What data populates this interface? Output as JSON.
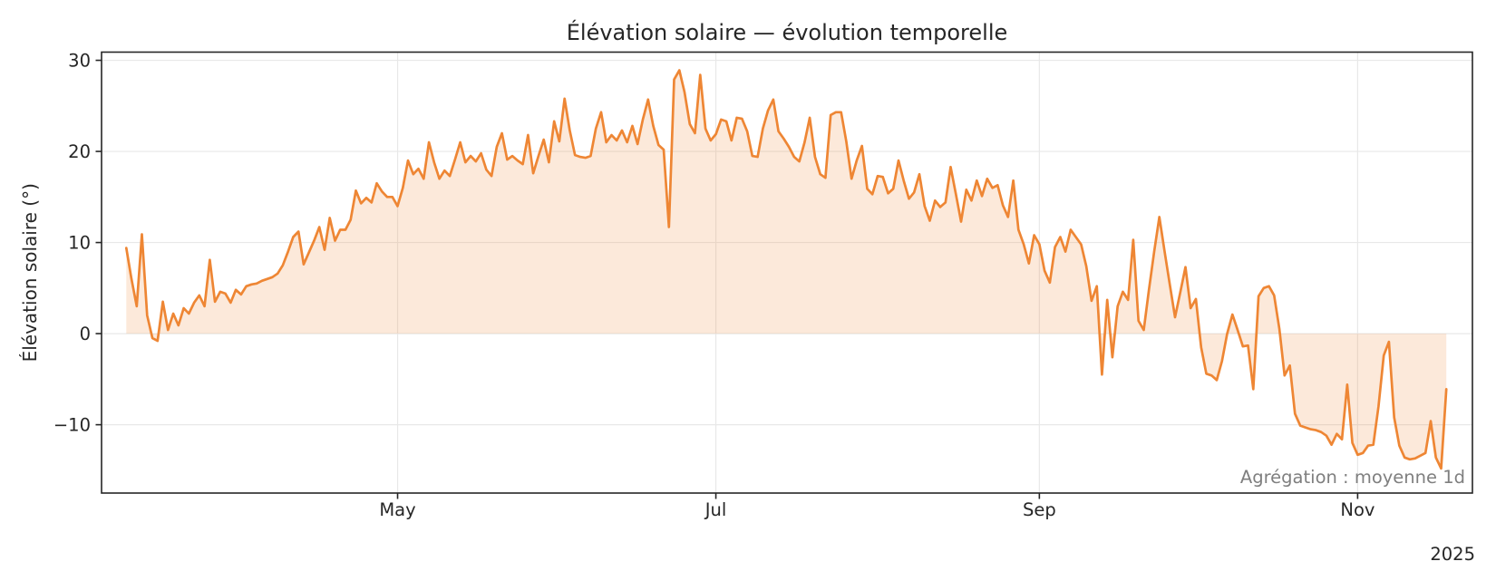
{
  "chart_data": {
    "type": "line",
    "title": "Élévation solaire — évolution temporelle",
    "ylabel": "Élévation solaire (°)",
    "xlabel": "",
    "annotation": "Agrégation : moyenne 1d",
    "year_label": "2025",
    "legend": null,
    "grid": true,
    "grid_color": "#e8e8e8",
    "spine_color": "#262626",
    "line_color": "#ee8634",
    "fill_color": "#ee8634",
    "fill_opacity": 0.18,
    "line_width": 2.7,
    "baseline": 0,
    "ylim": [
      -17.5,
      30.9
    ],
    "yticks": [
      -10,
      0,
      10,
      20,
      30
    ],
    "ytick_labels": [
      "−10",
      "0",
      "10",
      "20",
      "30"
    ],
    "xlim_days": [
      -4.74,
      258.0
    ],
    "xticks_days": [
      52,
      113,
      175,
      236
    ],
    "xtick_labels": [
      "May",
      "Jul",
      "Sep",
      "Nov"
    ],
    "x_start_day": 0,
    "x_step_days": 1,
    "values": [
      9.4,
      6.0,
      3.0,
      10.9,
      2.0,
      -0.5,
      -0.8,
      3.5,
      0.4,
      2.2,
      0.9,
      2.8,
      2.2,
      3.4,
      4.2,
      3.0,
      8.1,
      3.5,
      4.6,
      4.4,
      3.4,
      4.8,
      4.3,
      5.2,
      5.4,
      5.5,
      5.8,
      6.0,
      6.2,
      6.6,
      7.5,
      9.0,
      10.6,
      11.2,
      7.6,
      8.9,
      10.2,
      11.7,
      9.2,
      12.7,
      10.2,
      11.4,
      11.4,
      12.5,
      15.7,
      14.3,
      14.9,
      14.4,
      16.5,
      15.6,
      15.0,
      15.0,
      14.0,
      16.0,
      19.0,
      17.5,
      18.1,
      17.0,
      21.0,
      18.8,
      17.0,
      17.9,
      17.3,
      19.1,
      21.0,
      18.8,
      19.5,
      18.9,
      19.8,
      18.0,
      17.3,
      20.5,
      22.0,
      19.1,
      19.5,
      19.0,
      18.6,
      21.8,
      17.6,
      19.5,
      21.3,
      18.8,
      23.3,
      21.1,
      25.8,
      22.3,
      19.6,
      19.4,
      19.3,
      19.5,
      22.5,
      24.3,
      21.0,
      21.8,
      21.2,
      22.3,
      21.0,
      22.8,
      20.8,
      23.5,
      25.7,
      22.8,
      20.7,
      20.2,
      11.7,
      27.9,
      28.9,
      26.5,
      23.0,
      22.0,
      28.4,
      22.5,
      21.2,
      21.9,
      23.5,
      23.3,
      21.2,
      23.7,
      23.6,
      22.2,
      19.5,
      19.4,
      22.5,
      24.5,
      25.7,
      22.2,
      21.4,
      20.5,
      19.4,
      18.9,
      21.0,
      23.7,
      19.4,
      17.5,
      17.1,
      24.0,
      24.3,
      24.3,
      21.1,
      17.0,
      19.0,
      20.6,
      15.9,
      15.3,
      17.3,
      17.2,
      15.4,
      15.9,
      19.0,
      16.8,
      14.8,
      15.5,
      17.5,
      14.0,
      12.4,
      14.6,
      13.9,
      14.4,
      18.3,
      15.3,
      12.3,
      15.8,
      14.6,
      16.8,
      15.1,
      17.0,
      16.0,
      16.3,
      14.1,
      12.8,
      16.8,
      11.4,
      9.8,
      7.7,
      10.8,
      9.8,
      6.9,
      5.6,
      9.5,
      10.6,
      9.0,
      11.4,
      10.6,
      9.8,
      7.4,
      3.6,
      5.2,
      -4.5,
      3.7,
      -2.6,
      3.0,
      4.6,
      3.7,
      10.3,
      1.4,
      0.4,
      4.8,
      9.0,
      12.8,
      9.0,
      5.4,
      1.8,
      4.5,
      7.3,
      2.8,
      3.8,
      -1.5,
      -4.4,
      -4.6,
      -5.1,
      -3.0,
      0.0,
      2.1,
      0.4,
      -1.4,
      -1.3,
      -6.1,
      4.1,
      5.0,
      5.2,
      4.2,
      0.5,
      -4.6,
      -3.5,
      -8.8,
      -10.1,
      -10.3,
      -10.5,
      -10.6,
      -10.8,
      -11.2,
      -12.2,
      -11.0,
      -11.6,
      -5.6,
      -12.0,
      -13.3,
      -13.1,
      -12.3,
      -12.2,
      -8.0,
      -2.4,
      -0.9,
      -9.2,
      -12.3,
      -13.6,
      -13.8,
      -13.7,
      -13.4,
      -13.1,
      -9.6,
      -13.6,
      -14.8,
      -6.1
    ]
  }
}
